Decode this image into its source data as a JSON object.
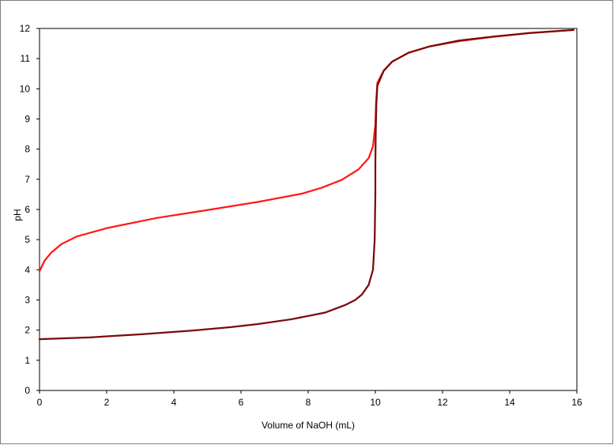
{
  "chart_data": {
    "type": "line",
    "title": "",
    "xlabel": "Volume of NaOH (mL)",
    "ylabel": "pH",
    "xlim": [
      0,
      16
    ],
    "ylim": [
      0,
      12
    ],
    "xticks": [
      0,
      2,
      4,
      6,
      8,
      10,
      12,
      14,
      16
    ],
    "yticks": [
      0,
      1,
      2,
      3,
      4,
      5,
      6,
      7,
      8,
      9,
      10,
      11,
      12
    ],
    "grid": false,
    "legend": "none",
    "series": [
      {
        "color": "#ff1a1a",
        "points": [
          [
            0.0,
            3.95
          ],
          [
            0.15,
            4.3
          ],
          [
            0.35,
            4.57
          ],
          [
            0.65,
            4.85
          ],
          [
            1.1,
            5.1
          ],
          [
            2.0,
            5.38
          ],
          [
            3.5,
            5.72
          ],
          [
            5.0,
            5.98
          ],
          [
            6.5,
            6.25
          ],
          [
            7.8,
            6.52
          ],
          [
            8.4,
            6.72
          ],
          [
            9.0,
            6.98
          ],
          [
            9.5,
            7.33
          ],
          [
            9.8,
            7.7
          ],
          [
            9.93,
            8.1
          ],
          [
            10.0,
            8.8
          ],
          [
            10.02,
            9.5
          ],
          [
            10.06,
            10.2
          ],
          [
            10.25,
            10.6
          ],
          [
            10.5,
            10.9
          ],
          [
            11.0,
            11.2
          ],
          [
            11.6,
            11.4
          ],
          [
            12.5,
            11.58
          ],
          [
            13.5,
            11.72
          ],
          [
            14.6,
            11.85
          ],
          [
            15.9,
            11.95
          ]
        ]
      },
      {
        "color": "#7a0a0a",
        "points": [
          [
            0.0,
            1.7
          ],
          [
            1.5,
            1.76
          ],
          [
            3.0,
            1.86
          ],
          [
            4.5,
            1.98
          ],
          [
            5.7,
            2.1
          ],
          [
            6.5,
            2.2
          ],
          [
            7.5,
            2.36
          ],
          [
            8.5,
            2.58
          ],
          [
            9.1,
            2.83
          ],
          [
            9.4,
            3.0
          ],
          [
            9.6,
            3.18
          ],
          [
            9.8,
            3.5
          ],
          [
            9.93,
            4.0
          ],
          [
            9.98,
            5.0
          ],
          [
            10.0,
            6.5
          ],
          [
            10.0,
            7.5
          ],
          [
            10.01,
            8.5
          ],
          [
            10.03,
            9.5
          ],
          [
            10.06,
            10.1
          ],
          [
            10.25,
            10.6
          ],
          [
            10.5,
            10.9
          ],
          [
            11.0,
            11.2
          ],
          [
            11.6,
            11.4
          ],
          [
            12.5,
            11.6
          ],
          [
            13.5,
            11.73
          ],
          [
            14.6,
            11.85
          ],
          [
            15.9,
            11.95
          ]
        ]
      }
    ]
  }
}
